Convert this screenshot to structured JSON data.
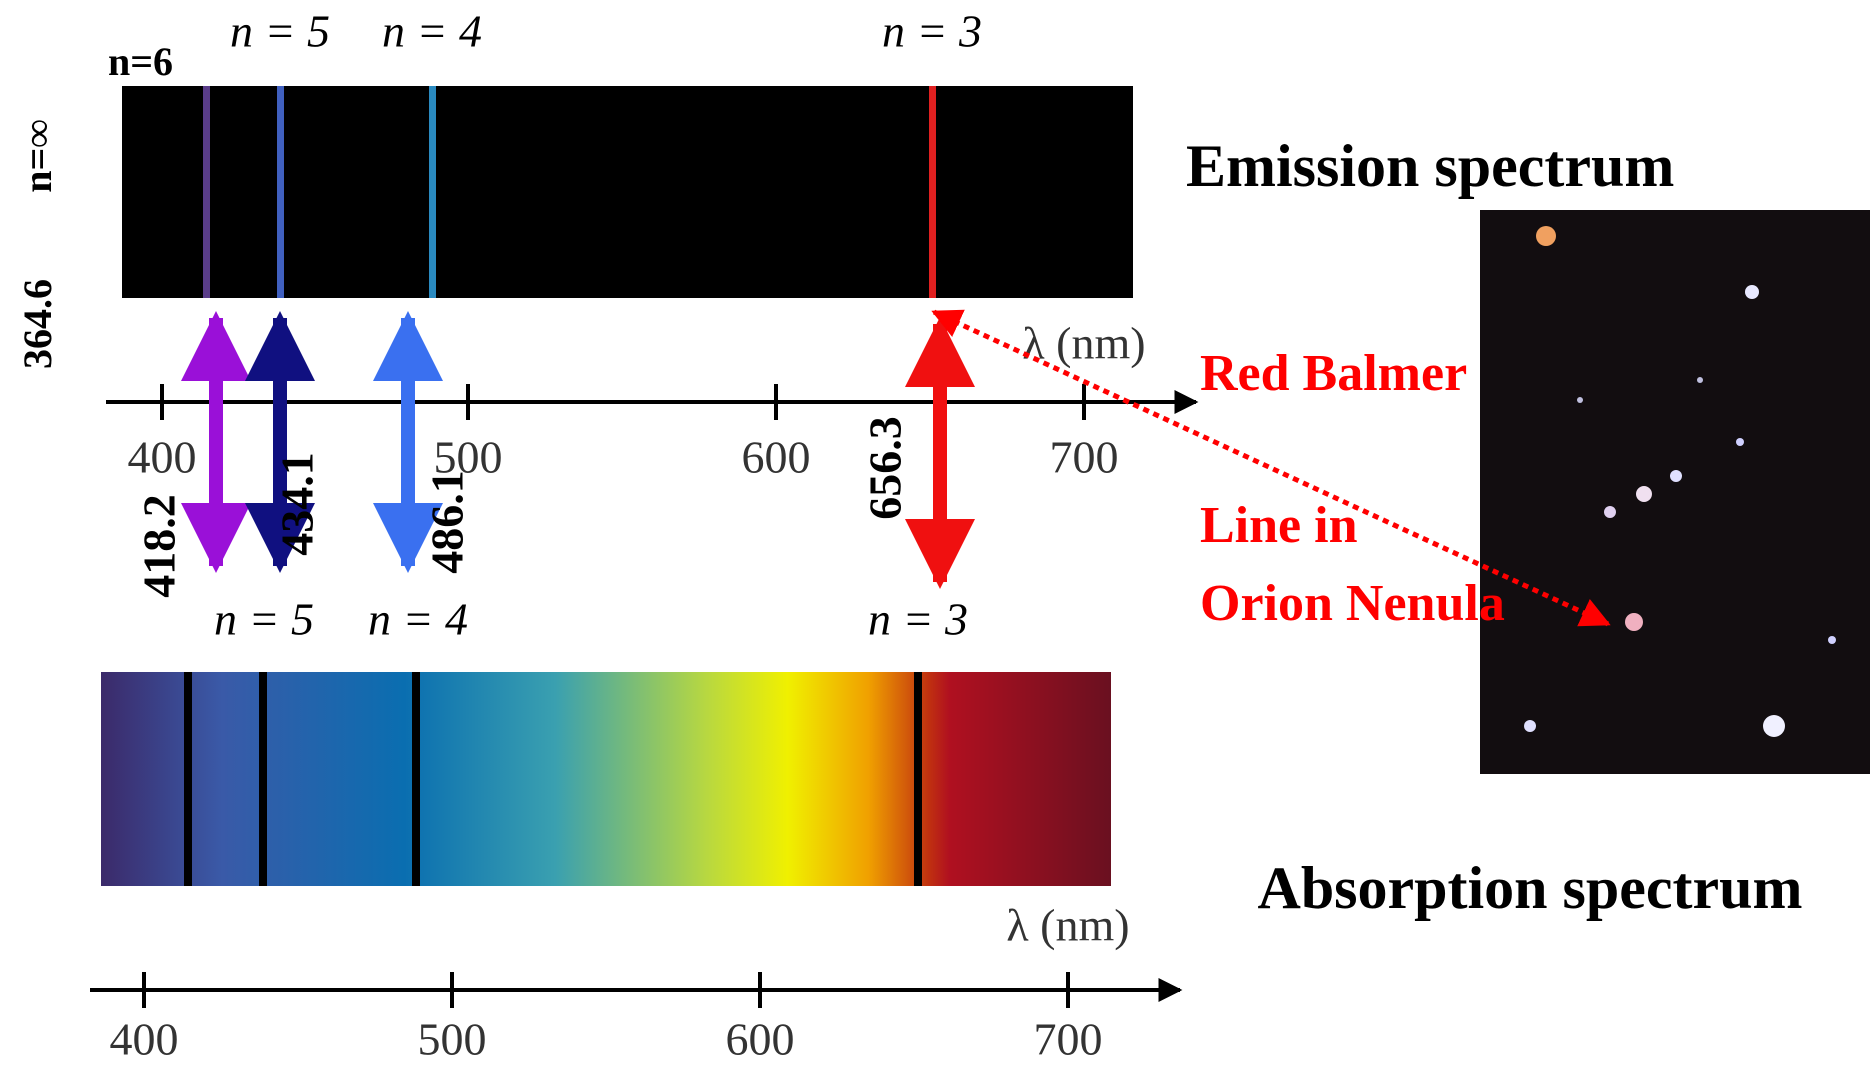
{
  "emission": {
    "title": "Emission spectrum",
    "n6": "n=6",
    "levels": [
      "n = 5",
      "n = 4",
      "n = 3"
    ],
    "n_inf": "n=∞",
    "limit": "364.6",
    "axis": {
      "label": "λ (nm)",
      "ticks": [
        "400",
        "500",
        "600",
        "700"
      ]
    }
  },
  "wavelengths": [
    "418.2",
    "434.1",
    "486.1",
    "656.3"
  ],
  "annotation": {
    "lines": [
      "Red Balmer",
      "Line in",
      "Orion Nenula"
    ]
  },
  "absorption": {
    "title": "Absorption spectrum",
    "levels": [
      "n = 5",
      "n = 4",
      "n = 3"
    ],
    "axis": {
      "label": "λ (nm)",
      "ticks": [
        "400",
        "500",
        "600",
        "700"
      ]
    }
  }
}
